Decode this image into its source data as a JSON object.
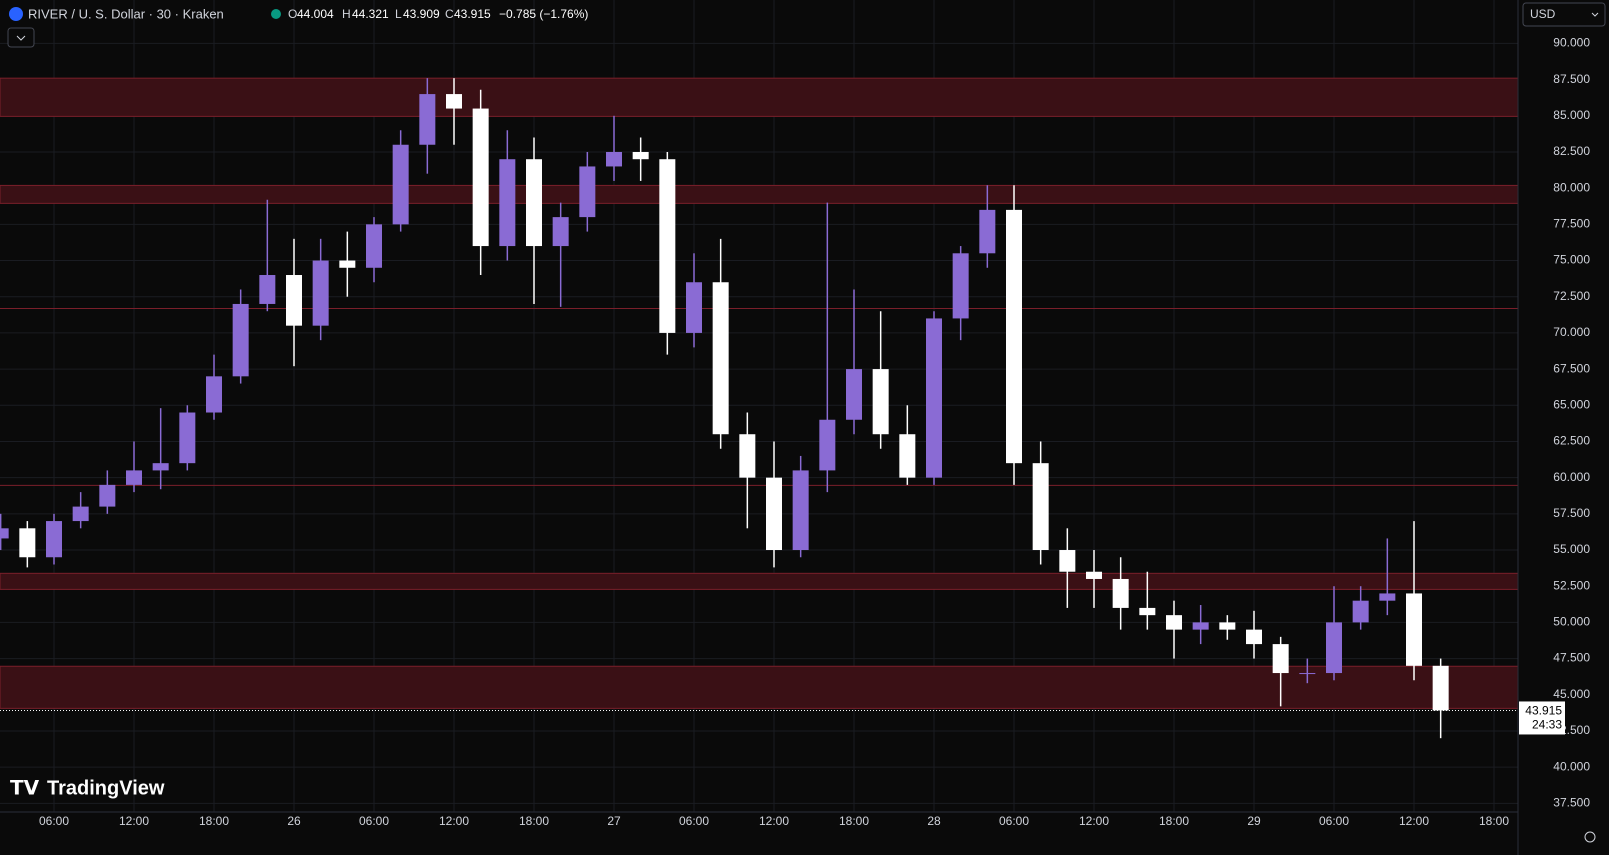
{
  "header": {
    "symbol": "RIVER / U. S. Dollar · 30 · Kraken",
    "o_label": "O",
    "o": 44.004,
    "h_label": "H",
    "h": 44.321,
    "l_label": "L",
    "l": 43.909,
    "c_label": "C",
    "c": 43.915,
    "change": "−0.785 (−1.76%)",
    "currency": "USD",
    "countdown": "24:33",
    "logo": "TradingView"
  },
  "chart_data": {
    "type": "candlestick",
    "x": [
      2,
      4,
      6,
      8,
      10,
      12,
      14,
      16,
      18,
      20,
      22,
      24,
      26,
      28,
      30,
      32,
      34,
      36,
      38,
      40,
      42,
      44,
      46,
      48,
      50,
      52,
      54,
      56,
      58,
      60,
      62,
      64,
      66,
      68,
      70,
      72,
      74,
      76,
      78,
      80,
      82,
      84,
      86,
      88,
      90,
      92,
      94,
      96,
      98,
      100,
      102,
      104,
      106,
      108,
      110
    ],
    "open": [
      55.8,
      56.5,
      54.5,
      57,
      58,
      59.5,
      60.5,
      61,
      64.5,
      67,
      72,
      74,
      70.5,
      75,
      74.5,
      77.5,
      83,
      86.5,
      85.5,
      76,
      82,
      76,
      78,
      81.5,
      82.5,
      82,
      70,
      73.5,
      63,
      60,
      55,
      60.5,
      64,
      67.5,
      63,
      60,
      71,
      75.5,
      78.5,
      61,
      55,
      53.5,
      53,
      51,
      50.5,
      49.5,
      50,
      49.5,
      48.5,
      46.5,
      46.5,
      50,
      51.5,
      52,
      47
    ],
    "high": [
      57.5,
      57,
      57.5,
      59,
      60.5,
      62.5,
      64.8,
      65,
      68.5,
      73,
      79.2,
      76.5,
      76.5,
      77,
      78,
      84,
      87.6,
      87.6,
      86.8,
      84,
      83.5,
      79,
      82.5,
      85,
      83.5,
      82.5,
      75.5,
      76.5,
      64.5,
      62.5,
      61.5,
      79,
      73,
      71.5,
      65,
      71.5,
      76,
      80.2,
      80.2,
      62.5,
      56.5,
      55,
      54.5,
      53.5,
      51.5,
      51.2,
      50.5,
      50.8,
      49,
      47.5,
      52.5,
      52.5,
      55.8,
      57,
      47.5
    ],
    "low": [
      55,
      53.8,
      54,
      56.5,
      57.5,
      59,
      59.2,
      60.5,
      64,
      66.5,
      71.5,
      67.7,
      69.5,
      72.5,
      73.5,
      77,
      81,
      83,
      74,
      75,
      72,
      71.8,
      77,
      80.5,
      80.5,
      68.5,
      69,
      62,
      56.5,
      53.8,
      54.5,
      59,
      63,
      62,
      59.5,
      59.5,
      69.5,
      74.5,
      59.5,
      54,
      51,
      51,
      49.5,
      49.5,
      47.5,
      48.5,
      48.8,
      47.5,
      44.2,
      45.8,
      46,
      49.5,
      50.5,
      46,
      42
    ],
    "close": [
      56.5,
      54.5,
      57,
      58,
      59.5,
      60.5,
      61,
      64.5,
      67,
      72,
      74,
      70.5,
      75,
      74.5,
      77.5,
      83,
      86.5,
      85.5,
      76,
      82,
      76,
      78,
      81.5,
      82.5,
      82,
      70,
      73.5,
      63,
      60,
      55,
      60.5,
      64,
      67.5,
      63,
      60,
      71,
      75.5,
      78.5,
      61,
      55,
      53.5,
      53,
      51,
      50.5,
      49.5,
      50,
      49.5,
      48.5,
      46.5,
      46.5,
      50,
      51.5,
      52,
      47,
      43.915
    ],
    "up_color": "#8a6bd4",
    "down_color": "#ffffff",
    "zone_color": "#3a1015",
    "zone_edge": "#7a1f2a",
    "zones": [
      [
        84.96,
        87.6
      ],
      [
        78.95,
        80.19
      ],
      [
        52.28,
        53.39
      ],
      [
        44.06,
        46.97
      ]
    ],
    "levels": [
      71.69,
      59.47
    ],
    "xlim": [
      1.95,
      115.8
    ],
    "xticks": [
      {
        "value": 6,
        "label": "06:00"
      },
      {
        "value": 12,
        "label": "12:00"
      },
      {
        "value": 18,
        "label": "18:00"
      },
      {
        "value": 24,
        "label": "26"
      },
      {
        "value": 30,
        "label": "06:00"
      },
      {
        "value": 36,
        "label": "12:00"
      },
      {
        "value": 42,
        "label": "18:00"
      },
      {
        "value": 48,
        "label": "27"
      },
      {
        "value": 54,
        "label": "06:00"
      },
      {
        "value": 60,
        "label": "12:00"
      },
      {
        "value": 66,
        "label": "18:00"
      },
      {
        "value": 72,
        "label": "28"
      },
      {
        "value": 78,
        "label": "06:00"
      },
      {
        "value": 84,
        "label": "12:00"
      },
      {
        "value": 90,
        "label": "18:00"
      },
      {
        "value": 96,
        "label": "29"
      },
      {
        "value": 102,
        "label": "06:00"
      },
      {
        "value": 108,
        "label": "12:00"
      },
      {
        "value": 114,
        "label": "18:00"
      }
    ],
    "ylim": [
      36.9,
      93.0
    ],
    "yticks": [
      {
        "value": 37.5,
        "label": "37.500"
      },
      {
        "value": 40,
        "label": "40.000"
      },
      {
        "value": 42.5,
        "label": "42.500"
      },
      {
        "value": 45,
        "label": "45.000"
      },
      {
        "value": 47.5,
        "label": "47.500"
      },
      {
        "value": 50,
        "label": "50.000"
      },
      {
        "value": 52.5,
        "label": "52.500"
      },
      {
        "value": 55,
        "label": "55.000"
      },
      {
        "value": 57.5,
        "label": "57.500"
      },
      {
        "value": 60,
        "label": "60.000"
      },
      {
        "value": 62.5,
        "label": "62.500"
      },
      {
        "value": 65,
        "label": "65.000"
      },
      {
        "value": 67.5,
        "label": "67.500"
      },
      {
        "value": 70,
        "label": "70.000"
      },
      {
        "value": 72.5,
        "label": "72.500"
      },
      {
        "value": 75,
        "label": "75.000"
      },
      {
        "value": 77.5,
        "label": "77.500"
      },
      {
        "value": 80,
        "label": "80.000"
      },
      {
        "value": 82.5,
        "label": "82.500"
      },
      {
        "value": 85,
        "label": "85.000"
      },
      {
        "value": 87.5,
        "label": "87.500"
      },
      {
        "value": 90,
        "label": "90.000"
      }
    ],
    "grid": true
  }
}
